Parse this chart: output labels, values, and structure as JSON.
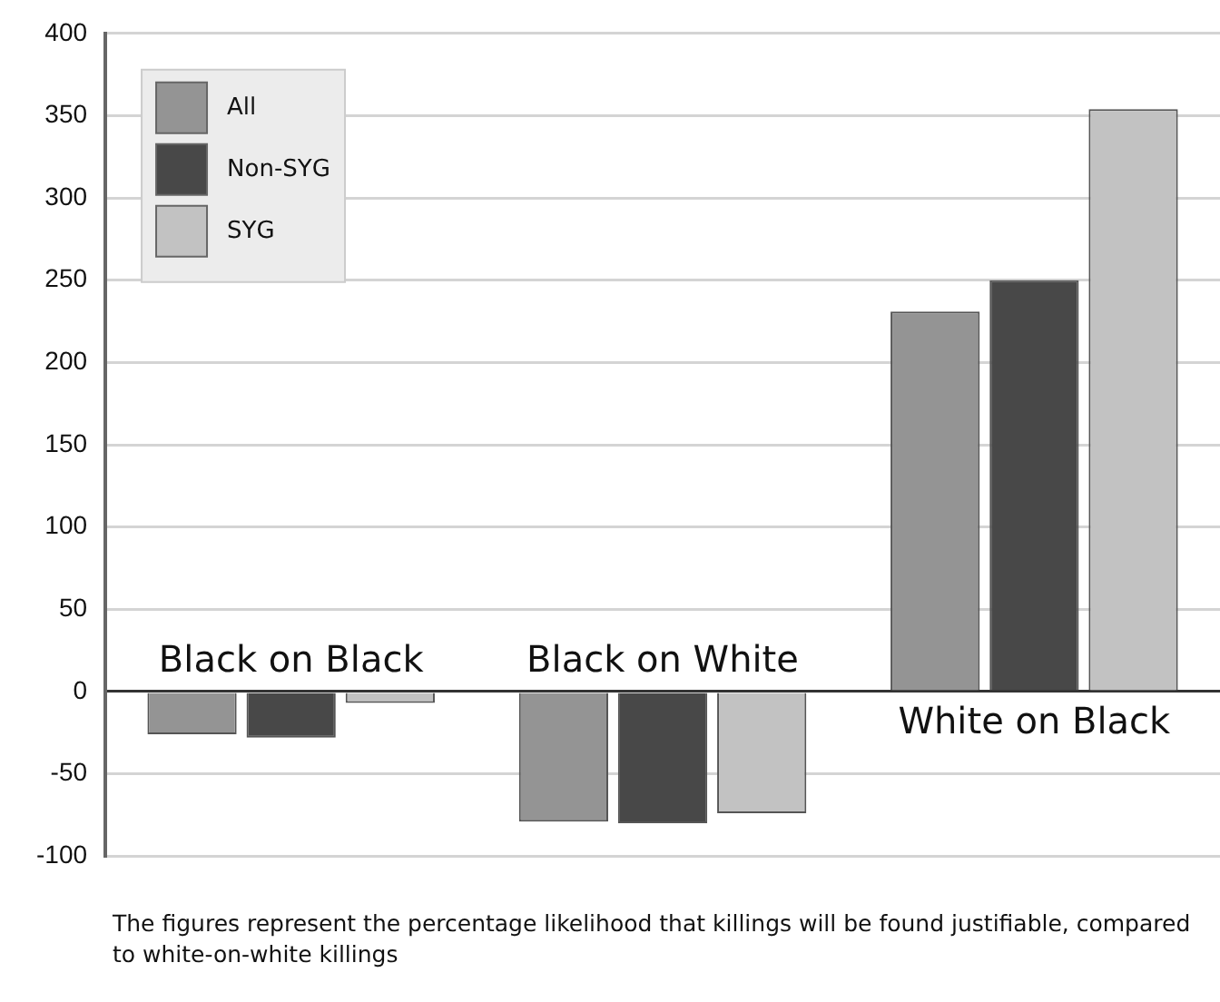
{
  "chart_data": {
    "type": "bar",
    "categories": [
      "Black on Black",
      "Black on White",
      "White on Black"
    ],
    "series": [
      {
        "name": "All",
        "color": "#949494",
        "values": [
          -26,
          -79,
          231
        ]
      },
      {
        "name": "Non-SYG",
        "color": "#484848",
        "values": [
          -28,
          -80,
          250
        ]
      },
      {
        "name": "SYG",
        "color": "#c2c2c2",
        "values": [
          -7,
          -74,
          354
        ]
      }
    ],
    "ylim": [
      -100,
      400
    ],
    "yticks": [
      -100,
      -50,
      0,
      50,
      100,
      150,
      200,
      250,
      300,
      350,
      400
    ],
    "grid": "y",
    "legend": "top left",
    "annotations": [
      "The figures represent the percentage likelihood that killings will be found justifiable, compared to white-on-white killings"
    ]
  }
}
